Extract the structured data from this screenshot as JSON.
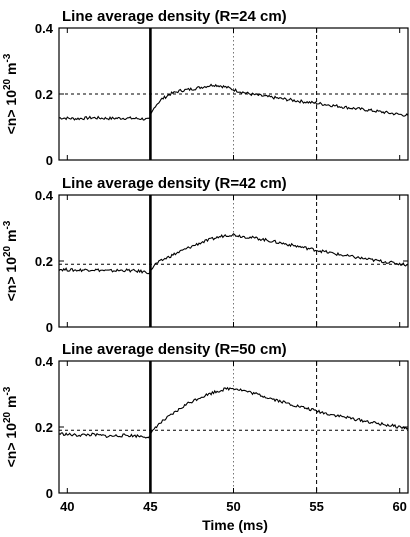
{
  "figure": {
    "xlabel": "Time (ms)",
    "ylabel_main": "<n> 10",
    "ylabel_exp": "20",
    "ylabel_unit": " m",
    "ylabel_unit_exp": "-3"
  },
  "chart_data": [
    {
      "type": "line",
      "title": "Line average density (R=24 cm)",
      "xlim": [
        39.5,
        60.5
      ],
      "ylim": [
        0,
        0.4
      ],
      "xticks": [
        40,
        45,
        50,
        55,
        60
      ],
      "yticks": [
        0,
        0.2,
        0.4
      ],
      "ytick_labels": [
        "0",
        "0.2",
        "0.4"
      ],
      "x_tick_labels_shown": false,
      "hline_y": 0.2,
      "vlines": [
        {
          "x": 45,
          "style": "solid"
        },
        {
          "x": 50,
          "style": "dotted"
        },
        {
          "x": 55,
          "style": "dashed"
        }
      ],
      "series": [
        {
          "x": [
            39.5,
            40.5,
            41.5,
            42.5,
            43.5,
            44.5,
            44.95,
            45.05,
            45.3,
            45.7,
            46.2,
            46.8,
            47.5,
            48.2,
            48.8,
            49.2,
            49.6,
            50.2,
            51,
            52,
            53,
            54,
            55,
            56,
            57,
            58,
            59,
            60,
            60.5
          ],
          "y": [
            0.128,
            0.125,
            0.128,
            0.126,
            0.127,
            0.125,
            0.122,
            0.14,
            0.165,
            0.185,
            0.2,
            0.21,
            0.215,
            0.222,
            0.228,
            0.225,
            0.22,
            0.21,
            0.2,
            0.192,
            0.185,
            0.178,
            0.172,
            0.165,
            0.158,
            0.152,
            0.145,
            0.138,
            0.135
          ]
        }
      ]
    },
    {
      "type": "line",
      "title": "Line average density (R=42 cm)",
      "xlim": [
        39.5,
        60.5
      ],
      "ylim": [
        0,
        0.4
      ],
      "xticks": [
        40,
        45,
        50,
        55,
        60
      ],
      "yticks": [
        0,
        0.2,
        0.4
      ],
      "ytick_labels": [
        "0",
        "0.2",
        "0.4"
      ],
      "x_tick_labels_shown": false,
      "hline_y": 0.19,
      "vlines": [
        {
          "x": 45,
          "style": "solid"
        },
        {
          "x": 50,
          "style": "dotted"
        },
        {
          "x": 55,
          "style": "dashed"
        }
      ],
      "series": [
        {
          "x": [
            39.5,
            40.5,
            41.5,
            42.5,
            43.5,
            44.5,
            44.95,
            45.05,
            45.3,
            45.8,
            46.5,
            47.2,
            48,
            48.8,
            49.5,
            50,
            50.5,
            51.5,
            52.5,
            53.5,
            54.5,
            55.5,
            56.5,
            57.5,
            58.5,
            59.5,
            60.5
          ],
          "y": [
            0.175,
            0.172,
            0.174,
            0.17,
            0.172,
            0.168,
            0.165,
            0.175,
            0.19,
            0.205,
            0.222,
            0.238,
            0.255,
            0.268,
            0.278,
            0.28,
            0.275,
            0.268,
            0.258,
            0.248,
            0.238,
            0.228,
            0.218,
            0.21,
            0.202,
            0.195,
            0.188
          ]
        }
      ]
    },
    {
      "type": "line",
      "title": "Line average density (R=50 cm)",
      "xlim": [
        39.5,
        60.5
      ],
      "ylim": [
        0,
        0.4
      ],
      "xticks": [
        40,
        45,
        50,
        55,
        60
      ],
      "yticks": [
        0,
        0.2,
        0.4
      ],
      "ytick_labels": [
        "0",
        "0.2",
        "0.4"
      ],
      "x_tick_labels": [
        "40",
        "45",
        "50",
        "55",
        "60"
      ],
      "x_tick_labels_shown": true,
      "xlabel": "Time (ms)",
      "hline_y": 0.19,
      "vlines": [
        {
          "x": 45,
          "style": "solid"
        },
        {
          "x": 50,
          "style": "dotted"
        },
        {
          "x": 55,
          "style": "dashed"
        }
      ],
      "series": [
        {
          "x": [
            39.5,
            40.5,
            41.5,
            42.5,
            43.5,
            44.5,
            44.95,
            45.05,
            45.3,
            45.8,
            46.5,
            47.2,
            48,
            48.8,
            49.5,
            50,
            50.5,
            51.5,
            52.5,
            53.5,
            54.5,
            55.5,
            56.5,
            57.5,
            58.5,
            59.5,
            60.5
          ],
          "y": [
            0.18,
            0.175,
            0.177,
            0.172,
            0.175,
            0.172,
            0.17,
            0.18,
            0.2,
            0.22,
            0.245,
            0.27,
            0.29,
            0.305,
            0.315,
            0.318,
            0.312,
            0.298,
            0.283,
            0.268,
            0.255,
            0.242,
            0.232,
            0.222,
            0.212,
            0.204,
            0.196
          ]
        }
      ]
    }
  ]
}
